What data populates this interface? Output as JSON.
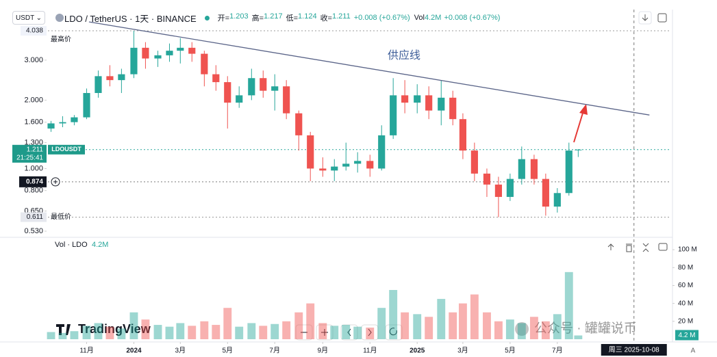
{
  "header": {
    "currency": "USDT",
    "symbol": "LDO / TetherUS · 1天 · BINANCE",
    "legend": [
      {
        "label": "开=",
        "value": "1.203"
      },
      {
        "label": "高=",
        "value": "1.217"
      },
      {
        "label": "低=",
        "value": "1.124"
      },
      {
        "label": "收=",
        "value": "1.211"
      }
    ],
    "change": "+0.008 (+0.67%)",
    "vol_label": "Vol",
    "vol": "4.2M",
    "vol_change": "+0.008 (+0.67%)"
  },
  "chart_data": [
    {
      "type": "candlestick",
      "x": [
        "2023-09-16",
        "2023-10-01",
        "2023-10-16",
        "2023-11-01",
        "2023-11-16",
        "2023-12-01",
        "2023-12-16",
        "2024-01-01",
        "2024-01-16",
        "2024-02-01",
        "2024-02-16",
        "2024-03-01",
        "2024-03-16",
        "2024-04-01",
        "2024-04-16",
        "2024-05-01",
        "2024-05-16",
        "2024-06-01",
        "2024-06-16",
        "2024-07-01",
        "2024-07-16",
        "2024-08-01",
        "2024-08-16",
        "2024-09-01",
        "2024-09-16",
        "2024-10-01",
        "2024-10-16",
        "2024-11-01",
        "2024-11-16",
        "2024-12-01",
        "2024-12-16",
        "2025-01-01",
        "2025-01-16",
        "2025-02-01",
        "2025-02-16",
        "2025-03-01",
        "2025-03-16",
        "2025-04-01",
        "2025-04-16",
        "2025-05-01",
        "2025-05-16",
        "2025-06-01",
        "2025-06-16",
        "2025-07-01",
        "2025-07-16",
        "2025-07-28"
      ],
      "open": [
        1.5,
        1.58,
        1.6,
        1.68,
        2.15,
        2.55,
        2.45,
        2.6,
        3.4,
        3.05,
        3.15,
        3.3,
        3.4,
        3.2,
        2.6,
        2.4,
        1.95,
        2.1,
        2.5,
        2.2,
        2.3,
        1.75,
        1.4,
        1.0,
        0.98,
        1.02,
        1.05,
        1.08,
        1.0,
        1.4,
        2.1,
        1.95,
        2.1,
        1.8,
        2.05,
        1.65,
        1.2,
        0.95,
        0.85,
        0.75,
        0.9,
        1.1,
        0.9,
        0.68,
        0.78,
        1.203
      ],
      "high": [
        1.62,
        1.7,
        1.72,
        2.25,
        2.7,
        2.85,
        2.75,
        4.038,
        3.6,
        3.3,
        3.55,
        3.75,
        3.6,
        3.3,
        2.85,
        2.55,
        2.3,
        2.75,
        2.7,
        2.6,
        2.45,
        1.8,
        1.45,
        1.12,
        1.1,
        1.3,
        1.18,
        1.15,
        1.55,
        2.5,
        2.45,
        2.35,
        2.3,
        2.45,
        2.2,
        1.75,
        1.3,
        1.0,
        0.92,
        0.95,
        1.25,
        1.15,
        0.95,
        0.82,
        1.3,
        1.217
      ],
      "low": [
        1.45,
        1.52,
        1.55,
        1.65,
        2.05,
        2.3,
        2.15,
        2.5,
        2.75,
        2.8,
        2.95,
        2.9,
        2.95,
        2.3,
        2.2,
        1.5,
        1.85,
        2.0,
        2.05,
        1.8,
        1.65,
        1.2,
        0.88,
        0.92,
        0.88,
        0.98,
        0.96,
        0.92,
        0.98,
        1.35,
        1.75,
        1.75,
        1.65,
        1.55,
        1.55,
        1.1,
        0.88,
        0.75,
        0.611,
        0.72,
        0.85,
        0.85,
        0.62,
        0.64,
        0.76,
        1.124
      ],
      "close": [
        1.58,
        1.6,
        1.68,
        2.15,
        2.55,
        2.45,
        2.6,
        3.4,
        3.05,
        3.15,
        3.3,
        3.4,
        3.2,
        2.6,
        2.4,
        1.95,
        2.1,
        2.5,
        2.2,
        2.3,
        1.75,
        1.4,
        1.0,
        0.98,
        1.02,
        1.05,
        1.08,
        1.0,
        1.4,
        2.1,
        1.95,
        2.1,
        1.8,
        2.05,
        1.65,
        1.2,
        0.95,
        0.85,
        0.75,
        0.9,
        1.1,
        0.9,
        0.68,
        0.78,
        1.2,
        1.211
      ],
      "up_color": "#26a69a",
      "down_color": "#ef5350",
      "log_scale": true,
      "ylim": [
        0.505,
        4.24
      ],
      "yticks": [
        {
          "value": 0.53,
          "label": "0.530"
        },
        {
          "value": 0.65,
          "label": "0.650"
        },
        {
          "value": 0.8,
          "label": "0.800"
        },
        {
          "value": 1,
          "label": "1.000"
        },
        {
          "value": 1.3,
          "label": "1.300"
        },
        {
          "value": 1.6,
          "label": "1.600"
        },
        {
          "value": 2,
          "label": "2.000"
        },
        {
          "value": 3,
          "label": "3.000"
        }
      ],
      "xlim": [
        "2023-09-12",
        "2025-11-25"
      ],
      "xticks": [
        {
          "value": "2023-11-01",
          "label": "11月"
        },
        {
          "value": "2024-01-01",
          "label": "2024"
        },
        {
          "value": "2024-03-01",
          "label": "3月"
        },
        {
          "value": "2024-05-01",
          "label": "5月"
        },
        {
          "value": "2024-07-01",
          "label": "7月"
        },
        {
          "value": "2024-09-01",
          "label": "9月"
        },
        {
          "value": "2024-11-01",
          "label": "11月"
        },
        {
          "value": "2025-01-01",
          "label": "2025"
        },
        {
          "value": "2025-03-01",
          "label": "3月"
        },
        {
          "value": "2025-05-01",
          "label": "5月"
        },
        {
          "value": "2025-07-01",
          "label": "7月"
        }
      ],
      "grid": false,
      "trendline": {
        "x": [
          "2023-11-04",
          "2025-10-28"
        ],
        "y": [
          4.42,
          1.72
        ],
        "color": "#5a6488",
        "label": "供应线"
      },
      "high_marker": {
        "value": 4.038,
        "label": "最高价"
      },
      "low_marker": {
        "value": 0.611,
        "label": "最低价"
      },
      "last_price": {
        "value": 1.211,
        "countdown": "21:25:41",
        "symbol": "LDOUSDT"
      },
      "crosshair": {
        "y": 0.874,
        "x": {
          "value": "2025-10-08",
          "label": "周三 2025-10-08"
        }
      }
    },
    {
      "type": "bar",
      "title": "Vol · LDO",
      "legend_value": "4.2M",
      "values": [
        8,
        7,
        9,
        15,
        18,
        14,
        12,
        30,
        22,
        16,
        14,
        18,
        15,
        20,
        16,
        35,
        14,
        18,
        15,
        17,
        20,
        30,
        40,
        18,
        15,
        16,
        14,
        13,
        35,
        55,
        30,
        28,
        25,
        45,
        30,
        40,
        50,
        30,
        20,
        22,
        18,
        25,
        20,
        28,
        75,
        4.2
      ],
      "up_color": "rgba(38,166,154,0.45)",
      "down_color": "rgba(239,83,80,0.45)",
      "ylim": [
        0,
        110
      ],
      "yticks": [
        {
          "value": 20,
          "label": "20 M"
        },
        {
          "value": 40,
          "label": "40 M"
        },
        {
          "value": 60,
          "label": "60 M"
        },
        {
          "value": 80,
          "label": "80 M"
        },
        {
          "value": 100,
          "label": "100 M"
        }
      ],
      "last_label": "4.2 M"
    }
  ],
  "branding": "TradingView",
  "watermark": "公众号 · 罐罐说币",
  "scale_mode": "A"
}
